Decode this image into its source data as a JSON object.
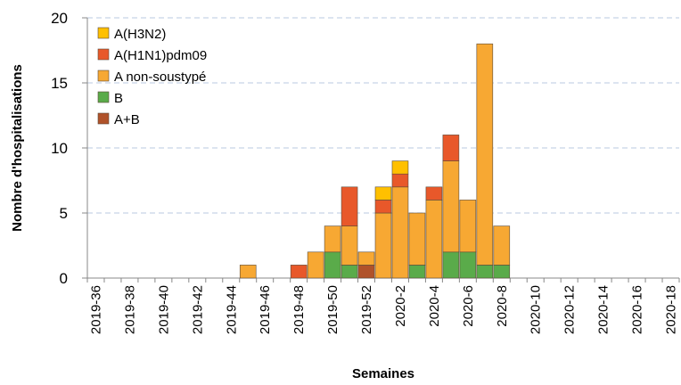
{
  "chart_data": {
    "type": "stacked-bar",
    "x_label": "Semaines",
    "y_label": "Nombre d'hospitalisations",
    "categories": [
      "2019-36",
      null,
      "2019-38",
      null,
      "2019-40",
      null,
      "2019-42",
      null,
      "2019-44",
      null,
      "2019-46",
      null,
      "2019-48",
      null,
      "2019-50",
      null,
      "2019-52",
      null,
      "2020-2",
      null,
      "2020-4",
      null,
      "2020-6",
      null,
      "2020-8",
      null,
      "2020-10",
      null,
      "2020-12",
      null,
      "2020-14",
      null,
      "2020-16",
      null,
      "2020-18"
    ],
    "series": [
      {
        "name": "A(H3N2)",
        "color": "#ffc000",
        "values": [
          0,
          0,
          0,
          0,
          0,
          0,
          0,
          0,
          0,
          0,
          0,
          0,
          0,
          0,
          0,
          0,
          0,
          1,
          1,
          0,
          0,
          0,
          0,
          0,
          0,
          0,
          0,
          0,
          0,
          0,
          0,
          0,
          0,
          0,
          0
        ]
      },
      {
        "name": "A(H1N1)pdm09",
        "color": "#e8582a",
        "values": [
          0,
          0,
          0,
          0,
          0,
          0,
          0,
          0,
          0,
          0,
          0,
          0,
          1,
          0,
          0,
          3,
          0,
          1,
          1,
          0,
          1,
          2,
          0,
          0,
          0,
          0,
          0,
          0,
          0,
          0,
          0,
          0,
          0,
          0,
          0
        ]
      },
      {
        "name": "A non-soustypé",
        "color": "#f7a833",
        "values": [
          0,
          0,
          0,
          0,
          0,
          0,
          0,
          0,
          0,
          1,
          0,
          0,
          0,
          2,
          2,
          3,
          1,
          5,
          7,
          4,
          6,
          7,
          4,
          17,
          3,
          0,
          0,
          0,
          0,
          0,
          0,
          0,
          0,
          0,
          0
        ]
      },
      {
        "name": "B",
        "color": "#5aab4a",
        "values": [
          0,
          0,
          0,
          0,
          0,
          0,
          0,
          0,
          0,
          0,
          0,
          0,
          0,
          0,
          2,
          1,
          0,
          0,
          0,
          1,
          0,
          2,
          2,
          1,
          1,
          0,
          0,
          0,
          0,
          0,
          0,
          0,
          0,
          0,
          0
        ]
      },
      {
        "name": "A+B",
        "color": "#b0522a",
        "values": [
          0,
          0,
          0,
          0,
          0,
          0,
          0,
          0,
          0,
          0,
          0,
          0,
          0,
          0,
          0,
          0,
          1,
          0,
          0,
          0,
          0,
          0,
          0,
          0,
          0,
          0,
          0,
          0,
          0,
          0,
          0,
          0,
          0,
          0,
          0
        ]
      }
    ],
    "ylim": [
      0,
      20
    ],
    "yticks": [
      0,
      5,
      10,
      15,
      20
    ],
    "grid": true,
    "legend": "top-left"
  }
}
